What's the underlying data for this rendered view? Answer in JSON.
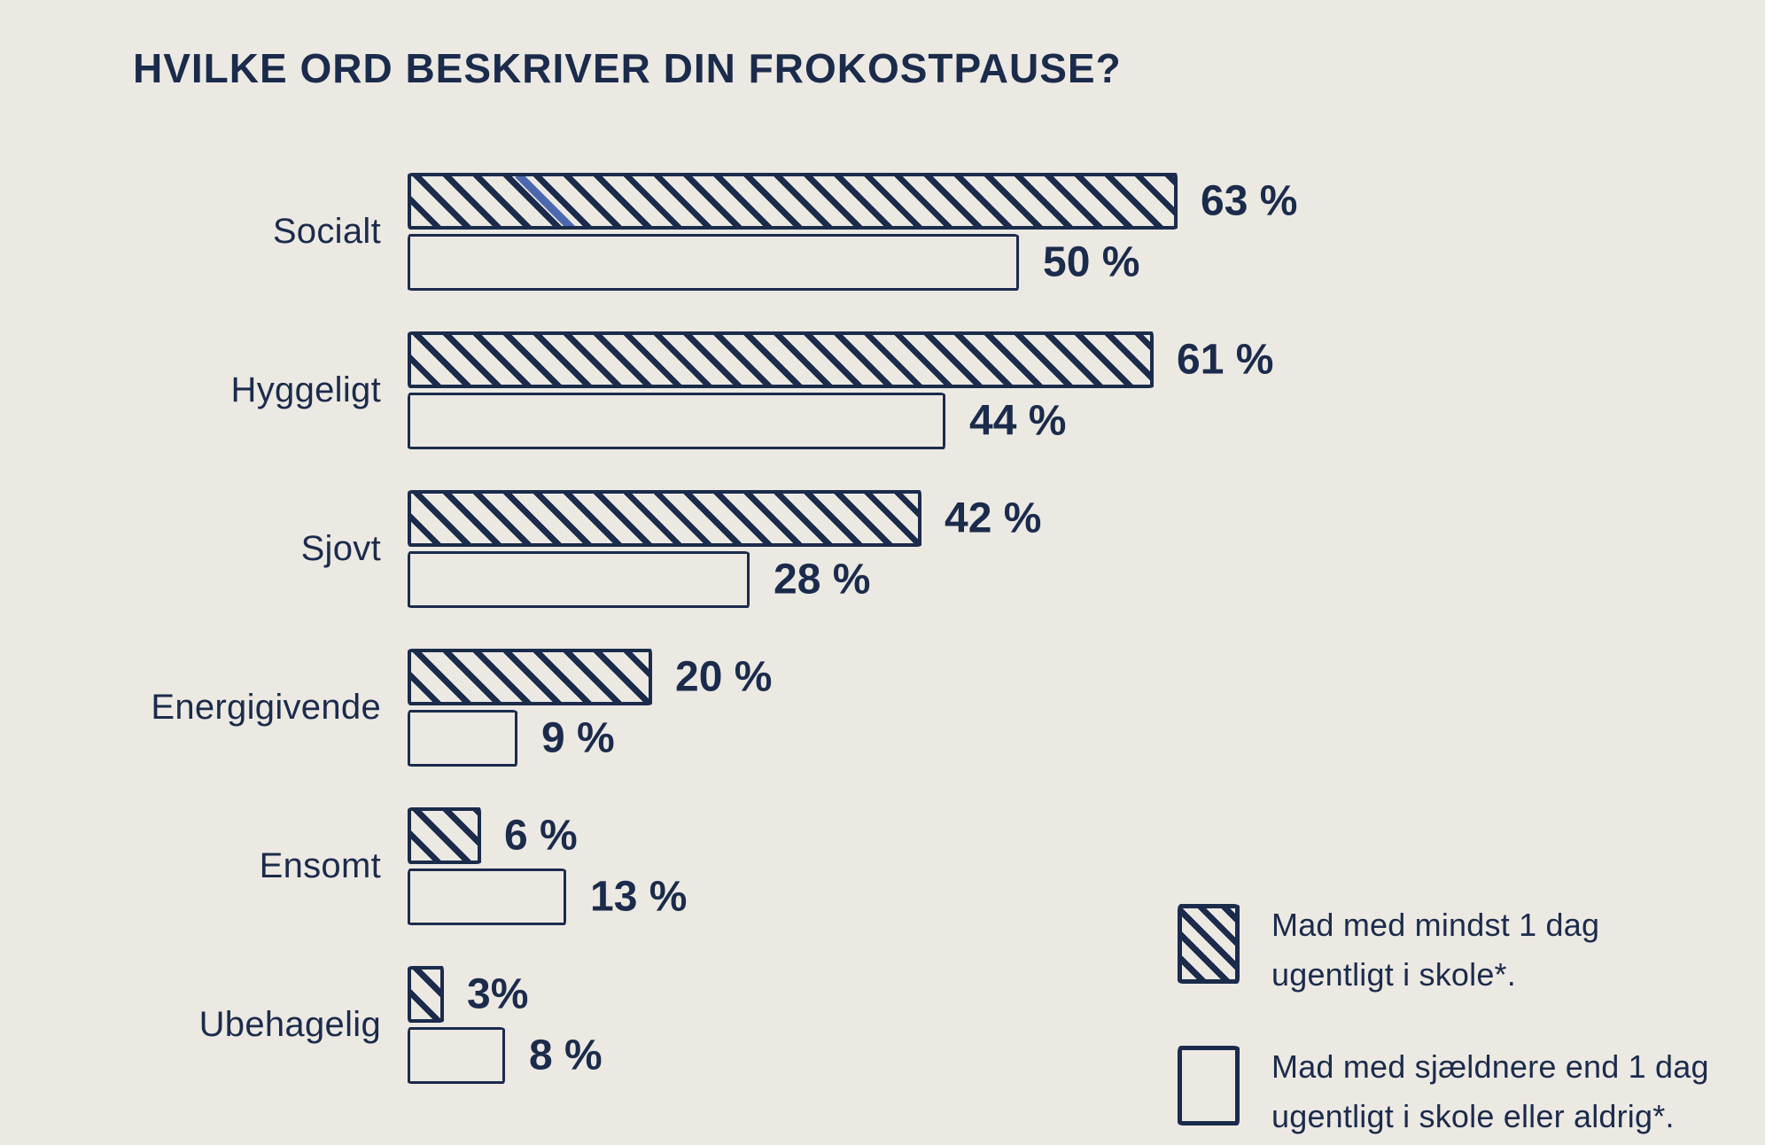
{
  "title": "HVILKE ORD BESKRIVER DIN FROKOSTPAUSE?",
  "colors": {
    "background": "#ECE9E3",
    "ink": "#1B2B4B",
    "accent_stripe_blue": "#4C68B0"
  },
  "chart_data": {
    "type": "bar",
    "orientation": "horizontal",
    "unit": "%",
    "title": "HVILKE ORD BESKRIVER DIN FROKOSTPAUSE?",
    "categories": [
      "Socialt",
      "Hyggeligt",
      "Sjovt",
      "Energigivende",
      "Ensomt",
      "Ubehagelig"
    ],
    "series": [
      {
        "name": "Mad med mindst 1 dag ugentligt i skole*.",
        "style": "hatched",
        "values": [
          63,
          61,
          42,
          20,
          6,
          3
        ]
      },
      {
        "name": "Mad med sjældnere end 1 dag ugentligt i skole eller aldrig*.",
        "style": "outline",
        "values": [
          50,
          44,
          28,
          9,
          13,
          8
        ]
      }
    ],
    "value_labels": [
      [
        "63 %",
        "50 %"
      ],
      [
        "61 %",
        "44 %"
      ],
      [
        "42 %",
        "28 %"
      ],
      [
        "20 %",
        "9 %"
      ],
      [
        "6 %",
        "13 %"
      ],
      [
        "3%",
        "8 %"
      ]
    ],
    "xlim": [
      0,
      70
    ],
    "grid": false,
    "legend_position": "bottom-right"
  },
  "legend": {
    "items": [
      {
        "swatch": "hatched",
        "lines": [
          "Mad med mindst 1 dag",
          "ugentligt i skole*."
        ]
      },
      {
        "swatch": "outline",
        "lines": [
          "Mad med sjældnere end 1 dag",
          "ugentligt i skole eller aldrig*."
        ]
      }
    ]
  }
}
